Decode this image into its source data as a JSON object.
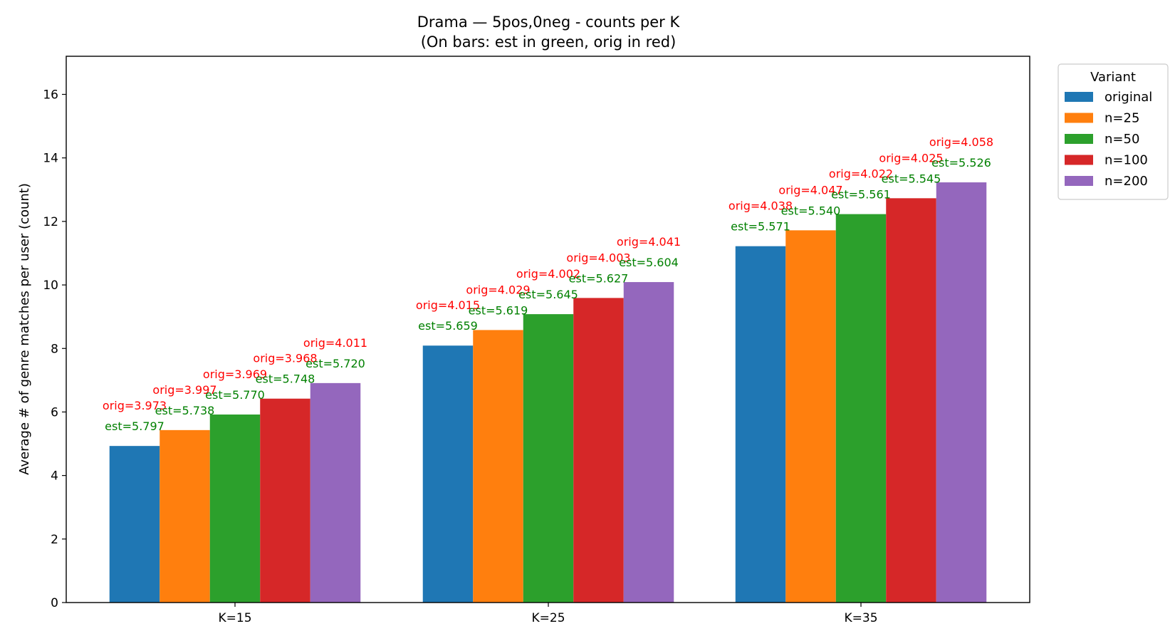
{
  "chart_data": {
    "type": "bar",
    "title": "Drama — 5pos,0neg - counts per K",
    "subtitle": "(On bars: est in green, orig in red)",
    "xlabel": "",
    "ylabel": "Average # of genre matches per user (count)",
    "ylim": [
      0,
      17.2
    ],
    "yticks": [
      0,
      2,
      4,
      6,
      8,
      10,
      12,
      14,
      16
    ],
    "categories": [
      "K=15",
      "K=25",
      "K=35"
    ],
    "grid": false,
    "legend_title": "Variant",
    "legend_placement": "outside-top-right",
    "series": [
      {
        "name": "original",
        "color": "#1f77b4",
        "values": [
          4.93,
          8.09,
          11.22
        ]
      },
      {
        "name": "n=25",
        "color": "#ff7f0e",
        "values": [
          5.43,
          8.58,
          11.72
        ]
      },
      {
        "name": "n=50",
        "color": "#2ca02c",
        "values": [
          5.92,
          9.08,
          12.23
        ]
      },
      {
        "name": "n=100",
        "color": "#d62728",
        "values": [
          6.42,
          9.59,
          12.73
        ]
      },
      {
        "name": "n=200",
        "color": "#9467bd",
        "values": [
          6.91,
          10.09,
          13.23
        ]
      }
    ],
    "annotations": {
      "est_color": "#008000",
      "orig_color": "#ff0000",
      "groups": [
        {
          "est": [
            "est=5.797",
            "est=5.738",
            "est=5.770",
            "est=5.748",
            "est=5.720"
          ],
          "orig": [
            "orig=3.973",
            "orig=3.997",
            "orig=3.969",
            "orig=3.968",
            "orig=4.011"
          ]
        },
        {
          "est": [
            "est=5.659",
            "est=5.619",
            "est=5.645",
            "est=5.627",
            "est=5.604"
          ],
          "orig": [
            "orig=4.015",
            "orig=4.029",
            "orig=4.002",
            "orig=4.003",
            "orig=4.041"
          ]
        },
        {
          "est": [
            "est=5.571",
            "est=5.540",
            "est=5.561",
            "est=5.545",
            "est=5.526"
          ],
          "orig": [
            "orig=4.038",
            "orig=4.047",
            "orig=4.022",
            "orig=4.025",
            "orig=4.058"
          ]
        }
      ]
    }
  }
}
